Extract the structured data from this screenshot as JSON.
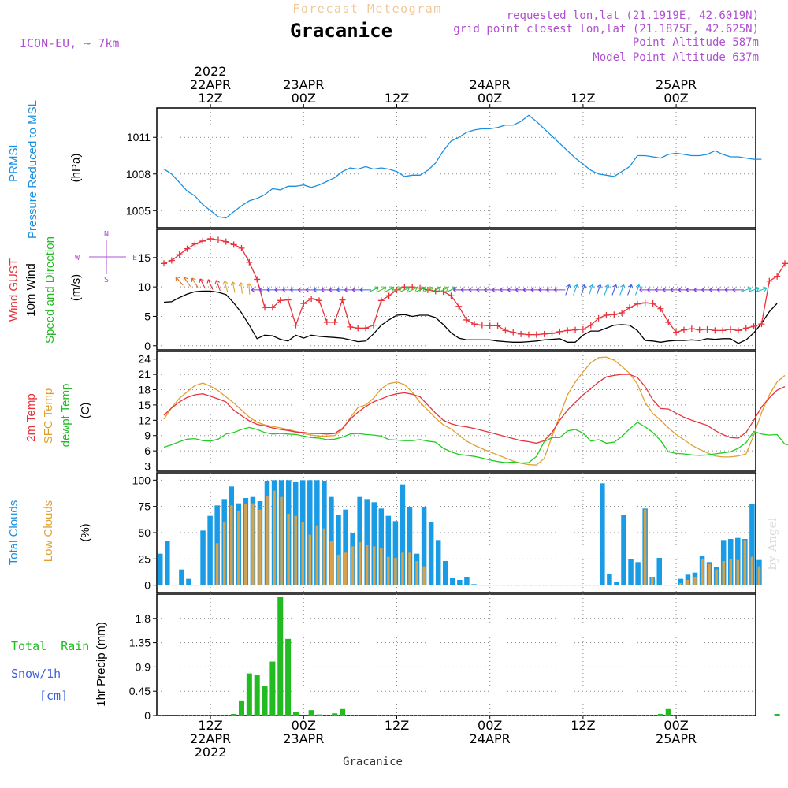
{
  "header": {
    "title_top": "Forecast Meteogram",
    "station": "Gracanice",
    "model": "ICON-EU, ~ 7km",
    "requested": "requested lon,lat (21.1919E, 42.6019N)",
    "grid_point": "grid point closest lon,lat (21.1875E, 42.625N)",
    "point_alt": "Point Altitude 587m",
    "model_alt": "Model Point Altitude 637m",
    "footer_station": "Gracanice",
    "credit": "by Angel"
  },
  "colors": {
    "pressure": "#1a8fe0",
    "gust": "#e8323c",
    "wind": "#000000",
    "temp2m": "#e8323c",
    "sfc": "#e0a030",
    "dew": "#22cc22",
    "total_cloud": "#1a9be6",
    "low_cloud": "#d4a24c",
    "rain": "#22bb22",
    "meta": "#b050d0",
    "title_top": "#f0c89a"
  },
  "time_axis": {
    "top": [
      {
        "lines": [
          "2022",
          "22APR",
          "12Z"
        ]
      },
      {
        "lines": [
          "23APR",
          "00Z"
        ]
      },
      {
        "lines": [
          "12Z"
        ]
      },
      {
        "lines": [
          "24APR",
          "00Z"
        ]
      },
      {
        "lines": [
          "12Z"
        ]
      },
      {
        "lines": [
          "25APR",
          "00Z"
        ]
      }
    ],
    "bottom": [
      {
        "lines": [
          "12Z",
          "22APR",
          "2022"
        ]
      },
      {
        "lines": [
          "00Z",
          "23APR"
        ]
      },
      {
        "lines": [
          "12Z"
        ]
      },
      {
        "lines": [
          "00Z",
          "24APR"
        ]
      },
      {
        "lines": [
          "12Z"
        ]
      },
      {
        "lines": [
          "00Z",
          "25APR"
        ]
      }
    ]
  },
  "panels": {
    "pressure": {
      "labels": [
        "PRMSL",
        "Pressure Reduced to MSL"
      ],
      "unit": "(hPa)",
      "ticks": [
        "1005",
        "1008",
        "1011"
      ]
    },
    "wind": {
      "labels": [
        "Wind GUST",
        "10m Wind",
        "Speed and Direction"
      ],
      "unit": "(m/s)",
      "ticks": [
        "0",
        "5",
        "10",
        "15"
      ],
      "compass": [
        "N",
        "W",
        "E",
        "S"
      ]
    },
    "temp": {
      "labels": [
        "2m Temp",
        "SFC Temp",
        "dewpt Temp"
      ],
      "unit": "(C)",
      "ticks": [
        "3",
        "6",
        "9",
        "12",
        "15",
        "18",
        "21",
        "24"
      ]
    },
    "clouds": {
      "labels": [
        "Total Clouds",
        "Low Clouds"
      ],
      "unit": "(%)",
      "ticks": [
        "0",
        "25",
        "50",
        "75",
        "100"
      ]
    },
    "precip": {
      "labels": [
        "Total  Rain",
        "Snow/1h",
        "[cm]"
      ],
      "unit": "1hr Precip (mm)",
      "ticks": [
        "0",
        "0.45",
        "0.9",
        "1.35",
        "1.8"
      ]
    }
  },
  "chart_data": {
    "type": "line",
    "x_hours_from_start": "hours 0-77, start 22APR 06Z",
    "pressure_hpa": [
      1008.4,
      1008,
      1007.3,
      1006.6,
      1006.2,
      1005.5,
      1005,
      1004.5,
      1004.4,
      1004.9,
      1005.4,
      1005.8,
      1006,
      1006.3,
      1006.8,
      1006.7,
      1007,
      1007,
      1007.1,
      1006.9,
      1007.1,
      1007.4,
      1007.7,
      1008.2,
      1008.5,
      1008.4,
      1008.6,
      1008.4,
      1008.5,
      1008.4,
      1008.2,
      1007.8,
      1007.9,
      1007.9,
      1008.3,
      1008.9,
      1009.9,
      1010.7,
      1011,
      1011.4,
      1011.6,
      1011.7,
      1011.7,
      1011.8,
      1012,
      1012,
      1012.3,
      1012.8,
      1012.3,
      1011.7,
      1011.1,
      1010.5,
      1009.9,
      1009.3,
      1008.8,
      1008.3,
      1008,
      1007.9,
      1007.8,
      1008.2,
      1008.6,
      1009.5,
      1009.5,
      1009.4,
      1009.3,
      1009.6,
      1009.7,
      1009.6,
      1009.5,
      1009.5,
      1009.6,
      1009.9,
      1009.6,
      1009.4,
      1009.4,
      1009.3,
      1009.2,
      1009.2
    ],
    "gust_ms": [
      14,
      14.5,
      15.5,
      16.5,
      17.3,
      17.8,
      18.2,
      18,
      17.7,
      17.2,
      16.6,
      14.2,
      11.3,
      6.5,
      6.5,
      7.7,
      7.8,
      3.5,
      7.2,
      8,
      7.7,
      4,
      4,
      7.8,
      3.2,
      3,
      3,
      3.5,
      7.7,
      8.5,
      9.5,
      10,
      10,
      9.8,
      9.5,
      9.3,
      9.2,
      8.5,
      6.7,
      4.4,
      3.7,
      3.5,
      3.4,
      3.4,
      2.6,
      2.3,
      2,
      1.9,
      1.9,
      2,
      2.1,
      2.4,
      2.6,
      2.7,
      2.8,
      3.5,
      4.7,
      5.2,
      5.3,
      5.6,
      6.5,
      7.1,
      7.3,
      7.2,
      6.3,
      4,
      2.3,
      2.7,
      2.9,
      2.7,
      2.8,
      2.6,
      2.6,
      2.8,
      2.6,
      3,
      3.3,
      3.7,
      11,
      11.8,
      14
    ],
    "wind_ms": [
      7.4,
      7.5,
      8.2,
      8.8,
      9.2,
      9.3,
      9.3,
      9.1,
      8.7,
      7.3,
      5.6,
      3.5,
      1.2,
      1.8,
      1.7,
      1.1,
      0.8,
      1.8,
      1.3,
      1.8,
      1.6,
      1.5,
      1.4,
      1.3,
      1,
      0.7,
      0.8,
      2,
      3.5,
      4.4,
      5.2,
      5.3,
      5,
      5.2,
      5.2,
      4.8,
      3.6,
      2.2,
      1.3,
      1,
      1,
      1,
      1,
      0.8,
      0.7,
      0.6,
      0.6,
      0.7,
      0.8,
      1,
      1.1,
      1.2,
      0.6,
      0.6,
      1.8,
      2.5,
      2.5,
      3,
      3.5,
      3.6,
      3.5,
      2.6,
      0.9,
      0.8,
      0.6,
      0.8,
      0.9,
      0.9,
      1,
      0.9,
      1.2,
      1.1,
      1.2,
      1.2,
      0.4,
      1,
      2.2,
      3.8,
      5.8,
      7.2
    ],
    "temp2m_c": [
      13,
      14.4,
      15.6,
      16.5,
      17,
      17.2,
      16.7,
      16.2,
      15.6,
      14,
      12.9,
      11.9,
      11.2,
      10.9,
      10.5,
      10.2,
      10,
      9.7,
      9.6,
      9.4,
      9.4,
      9.3,
      9.4,
      10.4,
      12.2,
      13.6,
      14.7,
      15.6,
      16.2,
      16.8,
      17.2,
      17.4,
      17.1,
      16.6,
      15,
      13.4,
      12,
      11.3,
      10.9,
      10.7,
      10.4,
      10,
      9.6,
      9.2,
      8.8,
      8.4,
      8,
      7.8,
      7.5,
      8,
      9.6,
      12,
      14,
      15.5,
      17,
      18.2,
      19.5,
      20.5,
      20.8,
      21,
      21,
      20.4,
      18.6,
      16,
      14.3,
      14.2,
      13.4,
      12.6,
      12,
      11.5,
      11,
      10,
      9.2,
      8.6,
      8.5,
      9.6,
      12,
      14.6,
      16.4,
      17.9,
      18.6
    ],
    "sfc_c": [
      12.2,
      14.5,
      16.3,
      17.6,
      18.8,
      19.3,
      18.7,
      17.8,
      16.6,
      15.4,
      14,
      12.6,
      11.6,
      11.1,
      10.8,
      10.5,
      10.2,
      9.8,
      9.4,
      9.1,
      8.9,
      8.9,
      9,
      10.2,
      12.5,
      14.5,
      15,
      16.3,
      18.2,
      19.2,
      19.5,
      19,
      17.5,
      15.5,
      14,
      12.4,
      11.1,
      10.3,
      9.1,
      7.9,
      7.1,
      6.4,
      5.8,
      5.2,
      4.6,
      4,
      3.6,
      3.3,
      3.2,
      4.5,
      8.8,
      12.8,
      17,
      19.5,
      21.5,
      23.3,
      24.3,
      24.4,
      23.8,
      22.6,
      21.2,
      19.1,
      15.5,
      13.3,
      12,
      10.5,
      9.2,
      8.2,
      7.1,
      6.3,
      5.6,
      5,
      4.8,
      4.8,
      5,
      5.4,
      9.1,
      13.5,
      17,
      19.5,
      20.8
    ],
    "dewpt_c": [
      6.7,
      7.2,
      7.8,
      8.3,
      8.4,
      8,
      7.9,
      8.3,
      9.3,
      9.6,
      10.2,
      10.6,
      10.2,
      9.6,
      9.3,
      9.4,
      9.3,
      9.2,
      8.9,
      8.6,
      8.5,
      8.2,
      8.3,
      8.7,
      9.3,
      9.4,
      9.2,
      9.1,
      8.9,
      8.2,
      8.1,
      8,
      8,
      8.2,
      7.9,
      7.7,
      6.5,
      5.8,
      5.3,
      5.1,
      4.9,
      4.6,
      4.2,
      3.9,
      3.7,
      3.8,
      3.6,
      3.7,
      4.9,
      7.8,
      8.6,
      8.6,
      9.9,
      10.2,
      9.5,
      7.9,
      8.2,
      7.5,
      7.7,
      8.8,
      10.3,
      11.6,
      10.7,
      9.6,
      8,
      5.8,
      5.5,
      5.4,
      5.2,
      5.1,
      5.2,
      5.4,
      5.6,
      5.8,
      6.5,
      7.6,
      9.8,
      9.3,
      9.1,
      9.2,
      7.3,
      7
    ],
    "total_cloud_pct": [
      30,
      42,
      0,
      15,
      6,
      0,
      52,
      66,
      76,
      82,
      94,
      78,
      83,
      84,
      80,
      99,
      100,
      100,
      100,
      98,
      100,
      100,
      100,
      99,
      84,
      67,
      72,
      50,
      84,
      82,
      79,
      73,
      66,
      61,
      96,
      74,
      30,
      74,
      60,
      43,
      23,
      7,
      5,
      8,
      1,
      0,
      0,
      0,
      0,
      0,
      0,
      0,
      0,
      0,
      0,
      0,
      0,
      0,
      0,
      0,
      0,
      0,
      97,
      11,
      3,
      67,
      25,
      22,
      73,
      8,
      26,
      0,
      0,
      6,
      10,
      12,
      28,
      22,
      17,
      43,
      44,
      45,
      44,
      77,
      24
    ],
    "low_cloud_pct": [
      0,
      0,
      0,
      0,
      0,
      0,
      0,
      0,
      40,
      60,
      76,
      71,
      77,
      78,
      72,
      85,
      90,
      84,
      68,
      66,
      60,
      48,
      57,
      54,
      42,
      29,
      31,
      37,
      41,
      38,
      37,
      35,
      27,
      26,
      31,
      31,
      23,
      18,
      0,
      0,
      0,
      0,
      0,
      0,
      0,
      0,
      0,
      0,
      0,
      0,
      0,
      0,
      0,
      0,
      0,
      0,
      0,
      0,
      0,
      0,
      0,
      0,
      0,
      0,
      0,
      0,
      0,
      0,
      72,
      8,
      0,
      0,
      0,
      2,
      5,
      8,
      25,
      20,
      15,
      23,
      25,
      24,
      43,
      27,
      18
    ],
    "precip_mm": [
      0,
      0,
      0,
      0,
      0,
      0,
      0,
      0,
      0,
      0.03,
      0.28,
      0.78,
      0.76,
      0.54,
      1,
      2.2,
      1.42,
      0.07,
      0,
      0.1,
      0.02,
      0,
      0.04,
      0.12,
      0,
      0,
      0,
      0,
      0,
      0,
      0,
      0,
      0,
      0,
      0,
      0,
      0,
      0,
      0,
      0,
      0,
      0,
      0,
      0,
      0,
      0,
      0,
      0,
      0,
      0,
      0,
      0,
      0,
      0,
      0,
      0,
      0,
      0,
      0,
      0,
      0,
      0,
      0,
      0,
      0.03,
      0.12,
      0,
      0,
      0,
      0,
      0,
      0,
      0,
      0,
      0,
      0,
      0,
      0,
      0,
      0.03,
      0
    ]
  }
}
